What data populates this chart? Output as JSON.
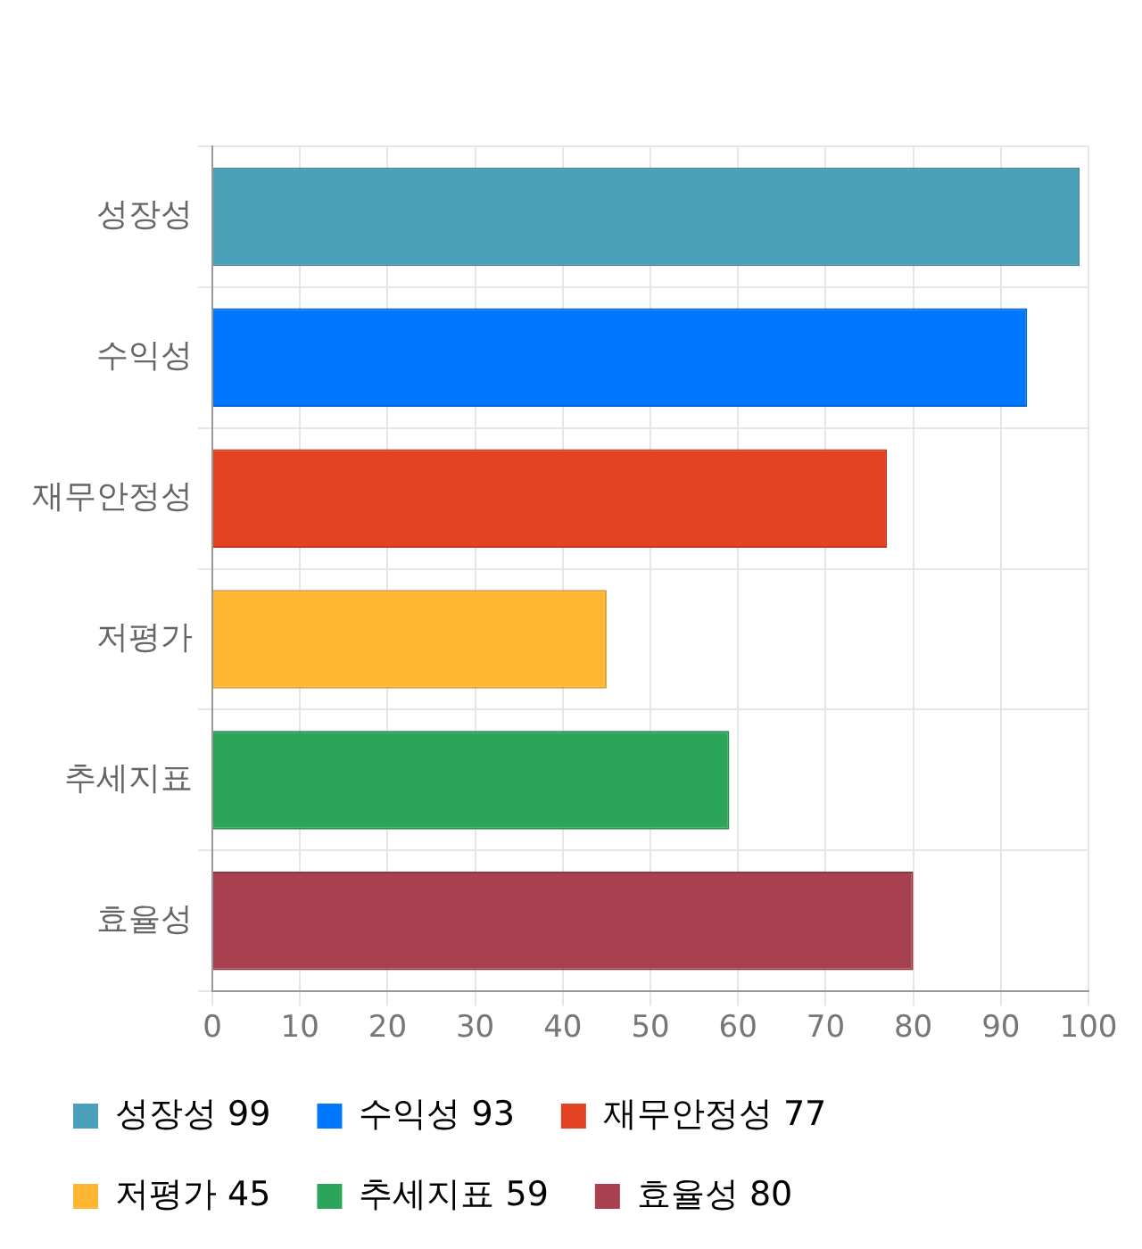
{
  "chart_data": {
    "type": "bar",
    "orientation": "horizontal",
    "categories": [
      "성장성",
      "수익성",
      "재무안정성",
      "저평가",
      "추세지표",
      "효율성"
    ],
    "series": [
      {
        "name": "성장성 99",
        "color": "#4aa0b8",
        "values": [
          99,
          null,
          null,
          null,
          null,
          null
        ]
      },
      {
        "name": "수익성 93",
        "color": "#0077ff",
        "values": [
          null,
          93,
          null,
          null,
          null,
          null
        ]
      },
      {
        "name": "재무안정성 77",
        "color": "#e34322",
        "values": [
          null,
          null,
          77,
          null,
          null,
          null
        ]
      },
      {
        "name": "저평가 45",
        "color": "#ffb733",
        "values": [
          null,
          null,
          null,
          45,
          null,
          null
        ]
      },
      {
        "name": "추세지표 59",
        "color": "#2aa55a",
        "values": [
          null,
          null,
          null,
          null,
          59,
          null
        ]
      },
      {
        "name": "효율성 80",
        "color": "#a8404f",
        "values": [
          null,
          null,
          null,
          null,
          null,
          80
        ]
      }
    ],
    "xlim": [
      0,
      100
    ],
    "xticks": [
      0,
      10,
      20,
      30,
      40,
      50,
      60,
      70,
      80,
      90,
      100
    ],
    "grid": true,
    "legend": "bottom"
  }
}
